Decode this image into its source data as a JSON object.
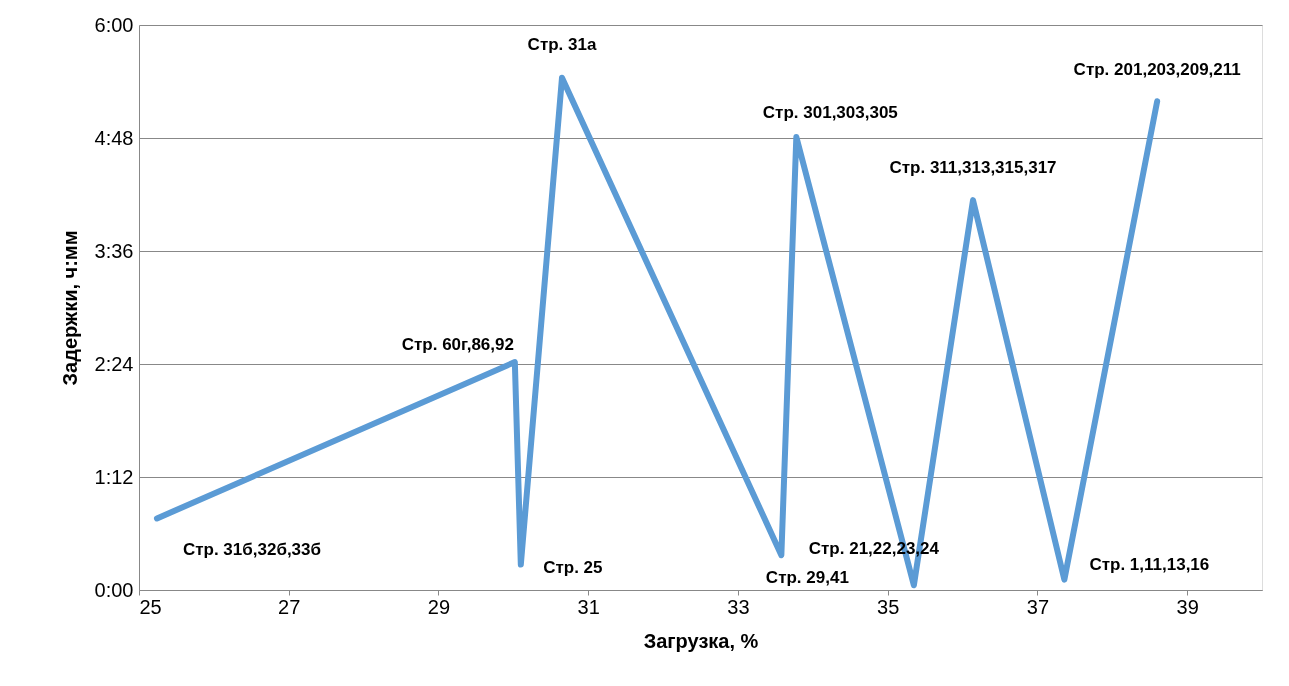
{
  "chart_data": {
    "type": "line",
    "xlabel": "Загрузка, %",
    "ylabel": "Задержки, ч:мм",
    "x": [
      25.24,
      30.02,
      30.1,
      30.65,
      33.58,
      33.78,
      35.35,
      36.14,
      37.36,
      38.6
    ],
    "series": [
      {
        "color": "#5b9bd5",
        "values": [
          0.76,
          2.42,
          0.27,
          5.44,
          0.37,
          4.81,
          0.05,
          4.14,
          0.11,
          5.19
        ]
      }
    ],
    "xlim": [
      25,
      40
    ],
    "xticks": [
      25,
      27,
      29,
      31,
      33,
      35,
      37,
      39
    ],
    "ylim": [
      0,
      6
    ],
    "yticks": [
      {
        "value": 0,
        "label": "0:00"
      },
      {
        "value": 1.2,
        "label": "1:12"
      },
      {
        "value": 2.4,
        "label": "2:24"
      },
      {
        "value": 3.6,
        "label": "3:36"
      },
      {
        "value": 4.8,
        "label": "4:48"
      },
      {
        "value": 6,
        "label": "6:00"
      }
    ],
    "grid": "y",
    "marker": "none",
    "line_style": "solid",
    "annotations": [
      {
        "text": "Стр. 31б,32б,33б",
        "x": 25.24,
        "y": 0.76
      },
      {
        "text": "Стр. 60г,86,92",
        "x": 30.02,
        "y": 2.42
      },
      {
        "text": "Стр. 25",
        "x": 30.1,
        "y": 0.27
      },
      {
        "text": "Стр. 31а",
        "x": 30.65,
        "y": 5.44
      },
      {
        "text": "Стр. 29,41",
        "x": 33.58,
        "y": 0.37
      },
      {
        "text": "Стр. 301,303,305",
        "x": 33.78,
        "y": 4.81
      },
      {
        "text": "Стр. 21,22,23,24",
        "x": 35.35,
        "y": 0.05
      },
      {
        "text": "Стр. 311,313,315,317",
        "x": 36.14,
        "y": 4.14
      },
      {
        "text": "Стр. 1,11,13,16",
        "x": 37.36,
        "y": 0.11
      },
      {
        "text": "Стр. 201,203,209,211",
        "x": 38.6,
        "y": 5.19
      }
    ]
  }
}
